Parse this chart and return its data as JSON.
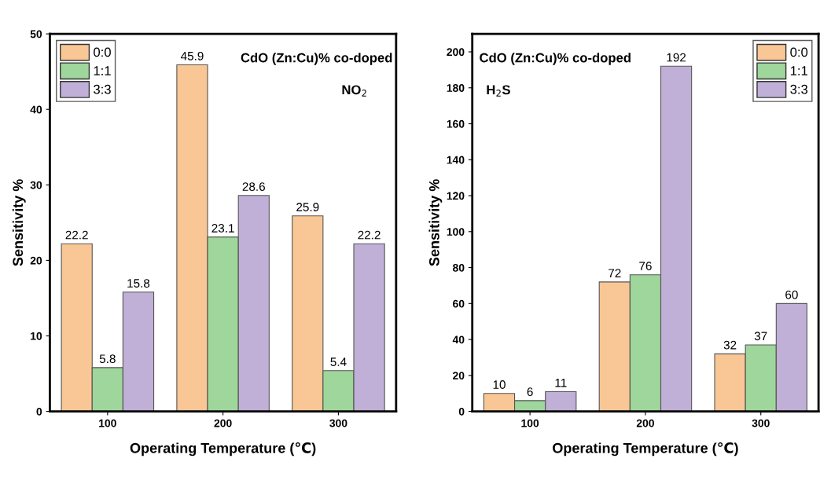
{
  "chart_data": [
    {
      "type": "bar",
      "xlabel": "Operating Temperature (℃)",
      "ylabel": "Sensitivity %",
      "categories": [
        "100",
        "200",
        "300"
      ],
      "series": [
        {
          "name": "0:0",
          "color": "#f9c795",
          "values": [
            22.2,
            45.9,
            25.9
          ]
        },
        {
          "name": "1:1",
          "color": "#9fd69b",
          "values": [
            5.8,
            23.1,
            5.4
          ]
        },
        {
          "name": "3:3",
          "color": "#c0afd6",
          "values": [
            15.8,
            28.6,
            22.2
          ]
        }
      ],
      "ylim": [
        0,
        50
      ],
      "yticks": [
        0,
        10,
        20,
        30,
        40,
        50
      ],
      "data_labels": true,
      "legend": "top left",
      "grid": false,
      "annotations": [
        "CdO (Zn:Cu)% co-doped",
        "NO$_{2}$"
      ]
    },
    {
      "type": "bar",
      "xlabel": "Operating Temperature (℃)",
      "ylabel": "Sensitivity %",
      "categories": [
        "100",
        "200",
        "300"
      ],
      "series": [
        {
          "name": "0:0",
          "color": "#f9c795",
          "values": [
            10,
            72,
            32
          ]
        },
        {
          "name": "1:1",
          "color": "#9fd69b",
          "values": [
            6,
            76,
            37
          ]
        },
        {
          "name": "3:3",
          "color": "#c0afd6",
          "values": [
            11,
            192,
            60
          ]
        }
      ],
      "ylim": [
        0,
        210
      ],
      "yticks": [
        0,
        20,
        40,
        60,
        80,
        100,
        120,
        140,
        160,
        180,
        200
      ],
      "data_labels": true,
      "legend": "top right",
      "grid": false,
      "annotations": [
        "CdO (Zn:Cu)% co-doped",
        "H$_{2}$S"
      ]
    }
  ]
}
